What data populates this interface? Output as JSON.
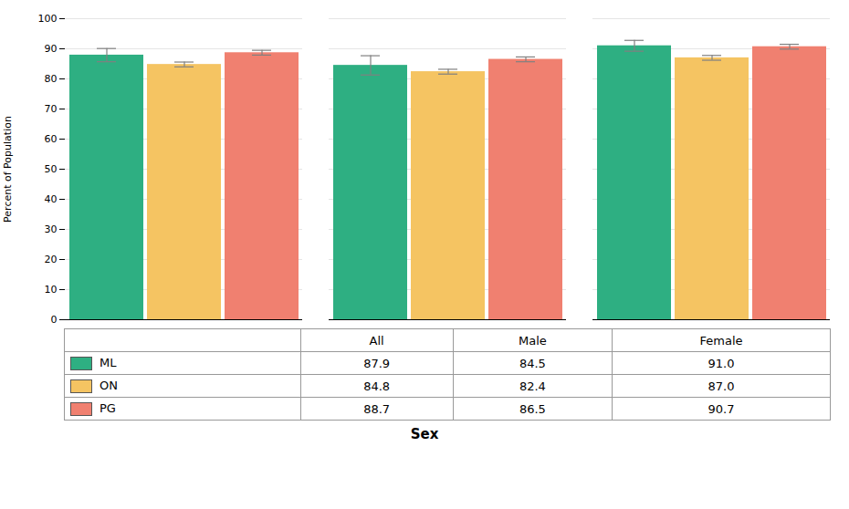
{
  "chart_data": {
    "type": "bar",
    "ylabel": "Percent of Population",
    "xlabel": "Sex",
    "categories": [
      "All",
      "Male",
      "Female"
    ],
    "series": [
      {
        "name": "ML",
        "color": "#2EAF82",
        "values": [
          87.9,
          84.5,
          91.0
        ],
        "value_labels": [
          "87.9",
          "84.5",
          "91.0"
        ],
        "errors": [
          2.2,
          3.2,
          1.8
        ]
      },
      {
        "name": "ON",
        "color": "#F5C462",
        "values": [
          84.8,
          82.4,
          87.0
        ],
        "value_labels": [
          "84.8",
          "82.4",
          "87.0"
        ],
        "errors": [
          0.8,
          0.8,
          0.8
        ]
      },
      {
        "name": "PG",
        "color": "#F08070",
        "values": [
          88.7,
          86.5,
          90.7
        ],
        "value_labels": [
          "88.7",
          "86.5",
          "90.7"
        ],
        "errors": [
          0.8,
          0.8,
          0.8
        ]
      }
    ],
    "ylim": [
      0,
      100
    ],
    "yticks": [
      0,
      10,
      20,
      30,
      40,
      50,
      60,
      70,
      80,
      90,
      100
    ],
    "grid": true,
    "tick_labels": "y",
    "data_labels": true
  }
}
